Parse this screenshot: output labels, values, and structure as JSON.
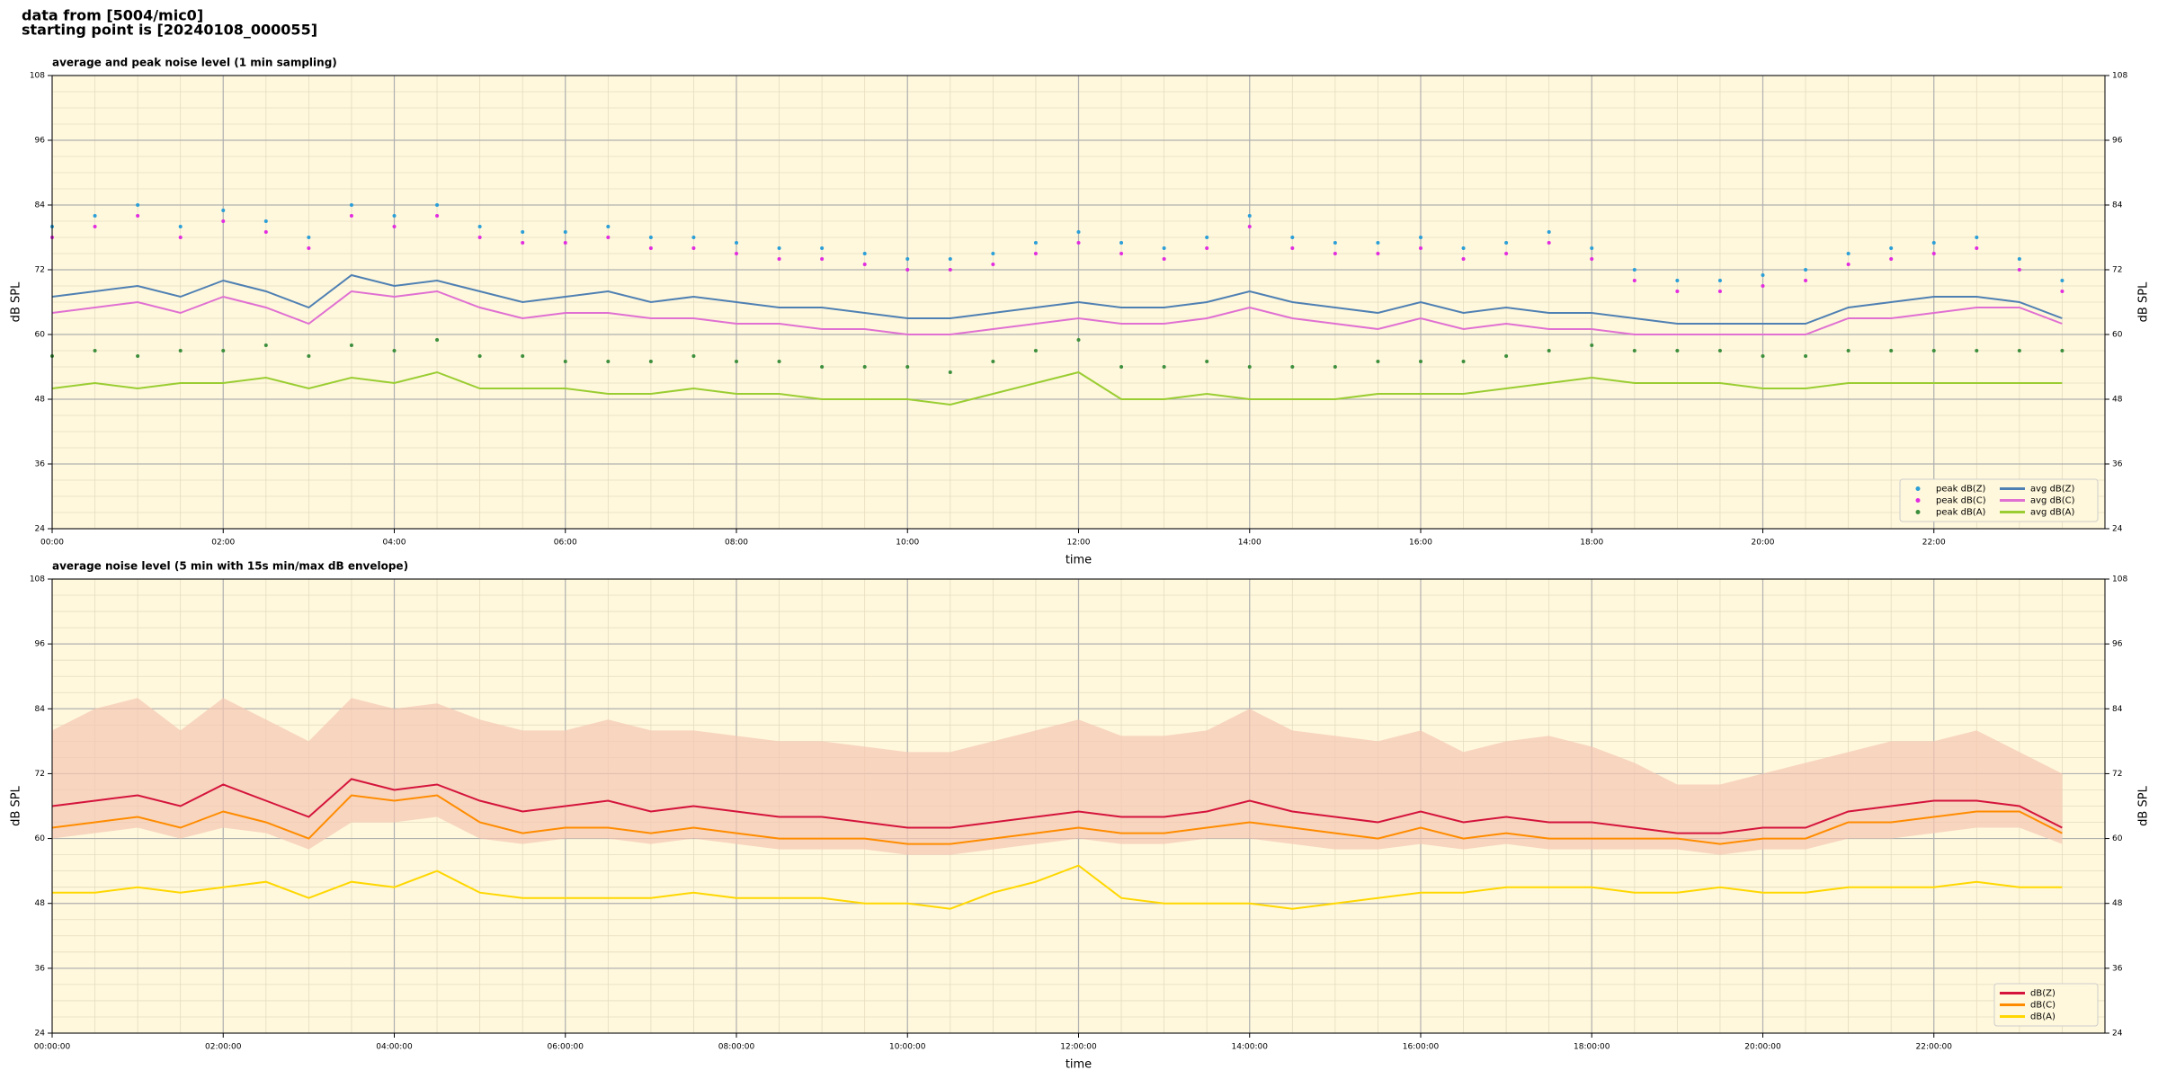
{
  "header": [
    "data from [5004/mic0]",
    "starting point is [20240108_000055]"
  ],
  "chart_data": [
    {
      "type": "line",
      "title": "average and peak noise level (1 min sampling)",
      "x_label": "time",
      "y_label": "dB SPL",
      "y2_label": "dB SPL",
      "x": [
        0,
        0.5,
        1,
        1.5,
        2,
        2.5,
        3,
        3.5,
        4,
        4.5,
        5,
        5.5,
        6,
        6.5,
        7,
        7.5,
        8,
        8.5,
        9,
        9.5,
        10,
        10.5,
        11,
        11.5,
        12,
        12.5,
        13,
        13.5,
        14,
        14.5,
        15,
        15.5,
        16,
        16.5,
        17,
        17.5,
        18,
        18.5,
        19,
        19.5,
        20,
        20.5,
        21,
        21.5,
        22,
        22.5,
        23,
        23.5
      ],
      "xlim": [
        0,
        24
      ],
      "xticks": [
        {
          "value": 0,
          "label": "00:00"
        },
        {
          "value": 2,
          "label": "02:00"
        },
        {
          "value": 4,
          "label": "04:00"
        },
        {
          "value": 6,
          "label": "06:00"
        },
        {
          "value": 8,
          "label": "08:00"
        },
        {
          "value": 10,
          "label": "10:00"
        },
        {
          "value": 12,
          "label": "12:00"
        },
        {
          "value": 14,
          "label": "14:00"
        },
        {
          "value": 16,
          "label": "16:00"
        },
        {
          "value": 18,
          "label": "18:00"
        },
        {
          "value": 20,
          "label": "20:00"
        },
        {
          "value": 22,
          "label": "22:00"
        }
      ],
      "ylim": [
        24,
        108
      ],
      "yticks": [
        24,
        36,
        48,
        60,
        72,
        84,
        96,
        108
      ],
      "y2lim": [
        24,
        108
      ],
      "y2ticks": [
        24,
        36,
        48,
        60,
        72,
        84,
        96,
        108
      ],
      "grid": true,
      "legend": "lower right",
      "legend_ncol": 2,
      "series": [
        {
          "name": "peak dB(Z)",
          "mark": "dot",
          "color": "#2b9fd8",
          "values": [
            80,
            82,
            84,
            80,
            83,
            81,
            78,
            84,
            82,
            84,
            80,
            79,
            79,
            80,
            78,
            78,
            77,
            76,
            76,
            75,
            74,
            74,
            75,
            77,
            79,
            77,
            76,
            78,
            82,
            78,
            77,
            77,
            78,
            76,
            77,
            79,
            76,
            72,
            70,
            70,
            71,
            72,
            75,
            76,
            77,
            78,
            74,
            70
          ]
        },
        {
          "name": "peak dB(C)",
          "mark": "dot",
          "color": "#e22ce0",
          "values": [
            78,
            80,
            82,
            78,
            81,
            79,
            76,
            82,
            80,
            82,
            78,
            77,
            77,
            78,
            76,
            76,
            75,
            74,
            74,
            73,
            72,
            72,
            73,
            75,
            77,
            75,
            74,
            76,
            80,
            76,
            75,
            75,
            76,
            74,
            75,
            77,
            74,
            70,
            68,
            68,
            69,
            70,
            73,
            74,
            75,
            76,
            72,
            68
          ]
        },
        {
          "name": "peak dB(A)",
          "mark": "dot",
          "color": "#3d8f3d",
          "values": [
            56,
            57,
            56,
            57,
            57,
            58,
            56,
            58,
            57,
            59,
            56,
            56,
            55,
            55,
            55,
            56,
            55,
            55,
            54,
            54,
            54,
            53,
            55,
            57,
            59,
            54,
            54,
            55,
            54,
            54,
            54,
            55,
            55,
            55,
            56,
            57,
            58,
            57,
            57,
            57,
            56,
            56,
            57,
            57,
            57,
            57,
            57,
            57
          ]
        },
        {
          "name": "avg dB(Z)",
          "mark": "line",
          "color": "#4f80b3",
          "values": [
            67,
            68,
            69,
            67,
            70,
            68,
            65,
            71,
            69,
            70,
            68,
            66,
            67,
            68,
            66,
            67,
            66,
            65,
            65,
            64,
            63,
            63,
            64,
            65,
            66,
            65,
            65,
            66,
            68,
            66,
            65,
            64,
            66,
            64,
            65,
            64,
            64,
            63,
            62,
            62,
            62,
            62,
            65,
            66,
            67,
            67,
            66,
            63
          ]
        },
        {
          "name": "avg dB(C)",
          "mark": "line",
          "color": "#e070d2",
          "values": [
            64,
            65,
            66,
            64,
            67,
            65,
            62,
            68,
            67,
            68,
            65,
            63,
            64,
            64,
            63,
            63,
            62,
            62,
            61,
            61,
            60,
            60,
            61,
            62,
            63,
            62,
            62,
            63,
            65,
            63,
            62,
            61,
            63,
            61,
            62,
            61,
            61,
            60,
            60,
            60,
            60,
            60,
            63,
            63,
            64,
            65,
            65,
            62
          ]
        },
        {
          "name": "avg dB(A)",
          "mark": "line",
          "color": "#9acd32",
          "values": [
            50,
            51,
            50,
            51,
            51,
            52,
            50,
            52,
            51,
            53,
            50,
            50,
            50,
            49,
            49,
            50,
            49,
            49,
            48,
            48,
            48,
            47,
            49,
            51,
            53,
            48,
            48,
            49,
            48,
            48,
            48,
            49,
            49,
            49,
            50,
            51,
            52,
            51,
            51,
            51,
            50,
            50,
            51,
            51,
            51,
            51,
            51,
            51
          ]
        }
      ]
    },
    {
      "type": "line",
      "title": "average noise level (5 min with 15s min/max dB envelope)",
      "x_label": "time",
      "y_label": "dB SPL",
      "y2_label": "dB SPL",
      "x": [
        0,
        0.5,
        1,
        1.5,
        2,
        2.5,
        3,
        3.5,
        4,
        4.5,
        5,
        5.5,
        6,
        6.5,
        7,
        7.5,
        8,
        8.5,
        9,
        9.5,
        10,
        10.5,
        11,
        11.5,
        12,
        12.5,
        13,
        13.5,
        14,
        14.5,
        15,
        15.5,
        16,
        16.5,
        17,
        17.5,
        18,
        18.5,
        19,
        19.5,
        20,
        20.5,
        21,
        21.5,
        22,
        22.5,
        23,
        23.5
      ],
      "xlim": [
        0,
        24
      ],
      "xticks": [
        {
          "value": 0,
          "label": "00:00:00"
        },
        {
          "value": 2,
          "label": "02:00:00"
        },
        {
          "value": 4,
          "label": "04:00:00"
        },
        {
          "value": 6,
          "label": "06:00:00"
        },
        {
          "value": 8,
          "label": "08:00:00"
        },
        {
          "value": 10,
          "label": "10:00:00"
        },
        {
          "value": 12,
          "label": "12:00:00"
        },
        {
          "value": 14,
          "label": "14:00:00"
        },
        {
          "value": 16,
          "label": "16:00:00"
        },
        {
          "value": 18,
          "label": "18:00:00"
        },
        {
          "value": 20,
          "label": "20:00:00"
        },
        {
          "value": 22,
          "label": "22:00:00"
        }
      ],
      "ylim": [
        24,
        108
      ],
      "yticks": [
        24,
        36,
        48,
        60,
        72,
        84,
        96,
        108
      ],
      "y2lim": [
        24,
        108
      ],
      "y2ticks": [
        24,
        36,
        48,
        60,
        72,
        84,
        96,
        108
      ],
      "grid": true,
      "legend": "lower right",
      "legend_ncol": 1,
      "envelope": {
        "color": "#f5c6b2",
        "upper": [
          80,
          84,
          86,
          80,
          86,
          82,
          78,
          86,
          84,
          85,
          82,
          80,
          80,
          82,
          80,
          80,
          79,
          78,
          78,
          77,
          76,
          76,
          78,
          80,
          82,
          79,
          79,
          80,
          84,
          80,
          79,
          78,
          80,
          76,
          78,
          79,
          77,
          74,
          70,
          70,
          72,
          74,
          76,
          78,
          78,
          80,
          76,
          72
        ],
        "lower": [
          60,
          61,
          62,
          60,
          62,
          61,
          58,
          63,
          63,
          64,
          60,
          59,
          60,
          60,
          59,
          60,
          59,
          58,
          58,
          58,
          57,
          57,
          58,
          59,
          60,
          59,
          59,
          60,
          60,
          59,
          58,
          58,
          59,
          58,
          59,
          58,
          58,
          58,
          58,
          57,
          58,
          58,
          60,
          60,
          61,
          62,
          62,
          59
        ]
      },
      "series": [
        {
          "name": "dB(Z)",
          "mark": "line",
          "color": "#d4143c",
          "values": [
            66,
            67,
            68,
            66,
            70,
            67,
            64,
            71,
            69,
            70,
            67,
            65,
            66,
            67,
            65,
            66,
            65,
            64,
            64,
            63,
            62,
            62,
            63,
            64,
            65,
            64,
            64,
            65,
            67,
            65,
            64,
            63,
            65,
            63,
            64,
            63,
            63,
            62,
            61,
            61,
            62,
            62,
            65,
            66,
            67,
            67,
            66,
            62
          ]
        },
        {
          "name": "dB(C)",
          "mark": "line",
          "color": "#ff8c00",
          "values": [
            62,
            63,
            64,
            62,
            65,
            63,
            60,
            68,
            67,
            68,
            63,
            61,
            62,
            62,
            61,
            62,
            61,
            60,
            60,
            60,
            59,
            59,
            60,
            61,
            62,
            61,
            61,
            62,
            63,
            62,
            61,
            60,
            62,
            60,
            61,
            60,
            60,
            60,
            60,
            59,
            60,
            60,
            63,
            63,
            64,
            65,
            65,
            61
          ]
        },
        {
          "name": "dB(A)",
          "mark": "line",
          "color": "#ffd700",
          "values": [
            50,
            50,
            51,
            50,
            51,
            52,
            49,
            52,
            51,
            54,
            50,
            49,
            49,
            49,
            49,
            50,
            49,
            49,
            49,
            48,
            48,
            47,
            50,
            52,
            55,
            49,
            48,
            48,
            48,
            47,
            48,
            49,
            50,
            50,
            51,
            51,
            51,
            50,
            50,
            51,
            50,
            50,
            51,
            51,
            51,
            52,
            51,
            51
          ]
        }
      ]
    }
  ]
}
